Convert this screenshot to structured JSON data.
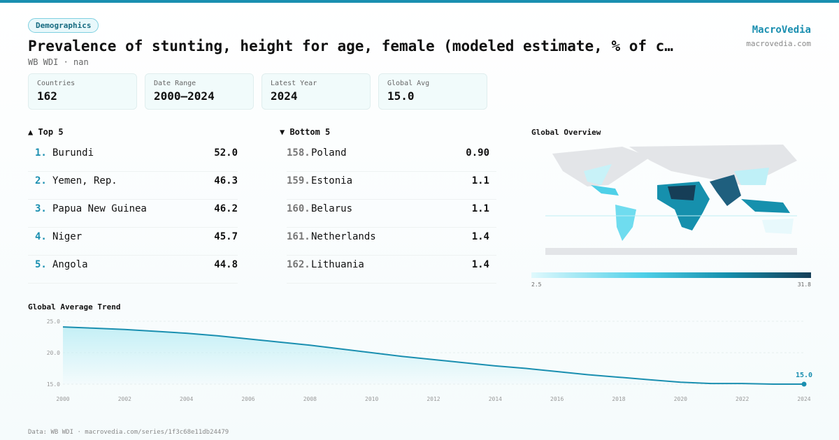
{
  "header": {
    "badge": "Demographics",
    "title": "Prevalence of stunting, height for age, female (modeled estimate, % of c…",
    "subtitle": "WB WDI · nan",
    "brand": "MacroVedia",
    "site": "macrovedia.com"
  },
  "stats": [
    {
      "label": "Countries",
      "value": "162"
    },
    {
      "label": "Date Range",
      "value": "2000–2024"
    },
    {
      "label": "Latest Year",
      "value": "2024"
    },
    {
      "label": "Global Avg",
      "value": "15.0"
    }
  ],
  "top": {
    "title": "▲ Top 5",
    "rows": [
      {
        "rank": "1.",
        "name": "Burundi",
        "value": "52.0"
      },
      {
        "rank": "2.",
        "name": "Yemen, Rep.",
        "value": "46.3"
      },
      {
        "rank": "3.",
        "name": "Papua New Guinea",
        "value": "46.2"
      },
      {
        "rank": "4.",
        "name": "Niger",
        "value": "45.7"
      },
      {
        "rank": "5.",
        "name": "Angola",
        "value": "44.8"
      }
    ]
  },
  "bottom": {
    "title": "▼ Bottom 5",
    "rows": [
      {
        "rank": "158.",
        "name": "Poland",
        "value": "0.90"
      },
      {
        "rank": "159.",
        "name": "Estonia",
        "value": "1.1"
      },
      {
        "rank": "160.",
        "name": "Belarus",
        "value": "1.1"
      },
      {
        "rank": "161.",
        "name": "Netherlands",
        "value": "1.4"
      },
      {
        "rank": "162.",
        "name": "Lithuania",
        "value": "1.4"
      }
    ]
  },
  "map": {
    "title": "Global Overview",
    "scale_min": "2.5",
    "scale_max": "31.8"
  },
  "chart_data": {
    "type": "line",
    "title": "Global Average Trend",
    "x": [
      2000,
      2001,
      2002,
      2003,
      2004,
      2005,
      2006,
      2007,
      2008,
      2009,
      2010,
      2011,
      2012,
      2013,
      2014,
      2015,
      2016,
      2017,
      2018,
      2019,
      2020,
      2021,
      2022,
      2023,
      2024
    ],
    "values": [
      24.1,
      23.9,
      23.7,
      23.4,
      23.1,
      22.7,
      22.2,
      21.7,
      21.2,
      20.6,
      20.0,
      19.4,
      18.9,
      18.4,
      17.9,
      17.5,
      17.0,
      16.5,
      16.1,
      15.7,
      15.3,
      15.1,
      15.1,
      15.0,
      15.0
    ],
    "value_labels": [
      null,
      null,
      null,
      null,
      null,
      null,
      null,
      null,
      null,
      null,
      null,
      null,
      null,
      null,
      null,
      null,
      null,
      null,
      null,
      null,
      null,
      null,
      null,
      null,
      "15.0"
    ],
    "color": "#1a8fb0",
    "xlim": [
      2000,
      2024
    ],
    "xticks": [
      2000,
      2002,
      2004,
      2006,
      2008,
      2010,
      2012,
      2014,
      2016,
      2018,
      2020,
      2022,
      2024
    ],
    "ylim": [
      15,
      25
    ],
    "yticks": [
      {
        "value": 15,
        "label": "15.0"
      },
      {
        "value": 20,
        "label": "20.0"
      },
      {
        "value": 25,
        "label": "25.0"
      }
    ],
    "grid": true
  },
  "footer": "Data: WB WDI · macrovedia.com/series/1f3c68e11db24479"
}
